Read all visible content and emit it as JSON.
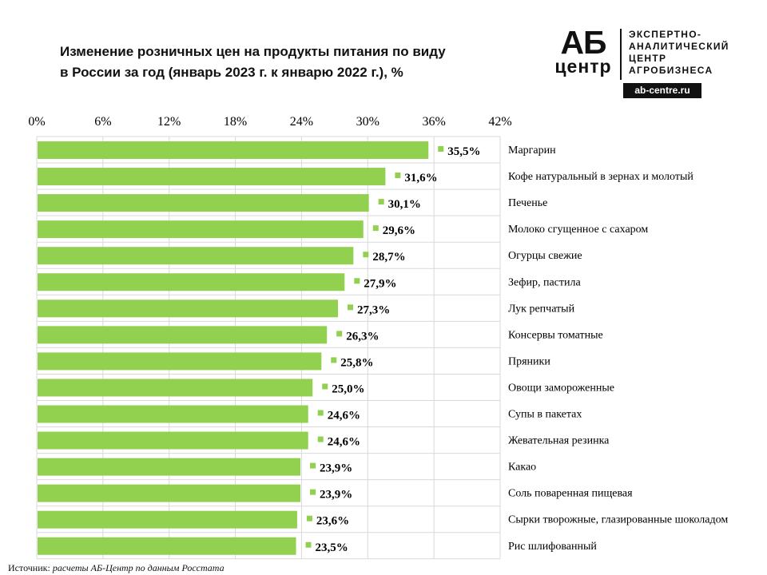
{
  "title": {
    "line1": "Изменение розничных  цен на продукты  питания по виду",
    "line2": "в России за год (январь  2023 г. к январю  2022 г.), %"
  },
  "logo": {
    "mark_top": "АБ",
    "mark_bottom": "центр",
    "lines": [
      "ЭКСПЕРТНО-",
      "АНАЛИТИЧЕСКИЙ",
      "ЦЕНТР",
      "АГРОБИЗНЕСА"
    ],
    "site": "ab-centre.ru"
  },
  "source": {
    "label": "Источник:",
    "text": " расчеты АБ-Центр  по данным  Росстата"
  },
  "colors": {
    "bar": "#92d050",
    "grid": "#d9d9d9",
    "label": "#000000"
  },
  "chart_data": {
    "type": "bar",
    "orientation": "horizontal",
    "x_axis_position": "top",
    "xlim": [
      0,
      42
    ],
    "xticks": [
      0,
      6,
      12,
      18,
      24,
      30,
      36,
      42
    ],
    "xtick_labels": [
      "0%",
      "6%",
      "12%",
      "18%",
      "24%",
      "30%",
      "36%",
      "42%"
    ],
    "grid": true,
    "category_label_position": "right",
    "categories": [
      "Маргарин",
      "Кофе натуральный в зернах и молотый",
      "Печенье",
      "Молоко сгущенное  с сахаром",
      "Огурцы свежие",
      "Зефир, пастила",
      "Лук репчатый",
      "Консервы томатные",
      "Пряники",
      "Овощи замороженные",
      "Супы в пакетах",
      "Жевательная резинка",
      "Какао",
      "Соль поваренная пищевая",
      "Сырки творожные, глазированные шоколадом",
      "Рис шлифованный"
    ],
    "values": [
      35.5,
      31.6,
      30.1,
      29.6,
      28.7,
      27.9,
      27.3,
      26.3,
      25.8,
      25.0,
      24.6,
      24.6,
      23.9,
      23.9,
      23.6,
      23.5
    ],
    "value_labels": [
      "35,5%",
      "31,6%",
      "30,1%",
      "29,6%",
      "28,7%",
      "27,9%",
      "27,3%",
      "26,3%",
      "25,8%",
      "25,0%",
      "24,6%",
      "24,6%",
      "23,9%",
      "23,9%",
      "23,6%",
      "23,5%"
    ]
  }
}
